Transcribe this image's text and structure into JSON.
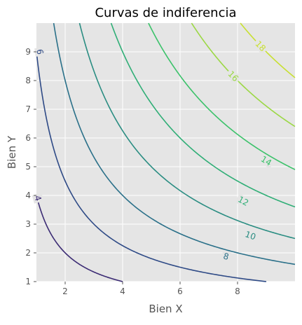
{
  "chart_data": {
    "type": "line",
    "subtype": "contour",
    "title": "Curvas de indiferencia",
    "xlabel": "Bien X",
    "ylabel": "Bien Y",
    "xlim": [
      1,
      10
    ],
    "ylim": [
      1,
      10
    ],
    "x_ticks": [
      2,
      4,
      6,
      8
    ],
    "y_ticks": [
      1,
      2,
      3,
      4,
      5,
      6,
      7,
      8,
      9
    ],
    "grid": true,
    "style": "ggplot",
    "function": "U = 2*sqrt(X*Y)",
    "series": [
      {
        "level": 4,
        "label": "4",
        "color": "#46327e"
      },
      {
        "level": 6,
        "label": "6",
        "color": "#365c8d"
      },
      {
        "level": 8,
        "label": "8",
        "color": "#277f8e"
      },
      {
        "level": 10,
        "label": "10",
        "color": "#1fa187"
      },
      {
        "level": 12,
        "label": "12",
        "color": "#4ac16d"
      },
      {
        "level": 14,
        "label": "14",
        "color": "#a0da39"
      },
      {
        "level": 16,
        "label": "16",
        "color": "#bddf26"
      },
      {
        "level": 18,
        "label": "18",
        "color": "#d0e11c"
      }
    ],
    "curve_colors": [
      "#3b2b74",
      "#2e4a86",
      "#2a7089",
      "#2a8d82",
      "#2fae76",
      "#3bc26a",
      "#9bd844",
      "#c8e030"
    ],
    "label_positions": [
      {
        "label": "4",
        "x": 1.05,
        "y": 3.9
      },
      {
        "label": "6",
        "x": 1.12,
        "y": 9.0
      },
      {
        "label": "8",
        "x": 7.6,
        "y": 1.87
      },
      {
        "label": "10",
        "x": 8.45,
        "y": 2.6
      },
      {
        "label": "12",
        "x": 8.2,
        "y": 3.8
      },
      {
        "label": "14",
        "x": 9.0,
        "y": 5.2
      },
      {
        "label": "16",
        "x": 7.85,
        "y": 8.15
      },
      {
        "label": "18",
        "x": 8.8,
        "y": 9.2
      }
    ]
  }
}
